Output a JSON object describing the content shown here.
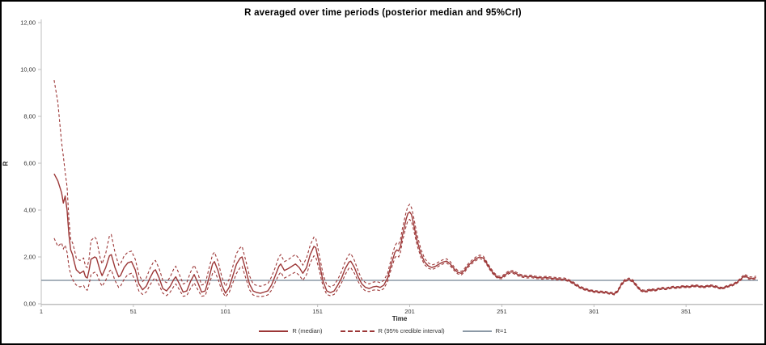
{
  "chart_data": {
    "type": "line",
    "title": "R averaged over time periods (posterior median and 95%CrI)",
    "xlabel": "Time",
    "ylabel": "R",
    "xlim": [
      1,
      390
    ],
    "ylim": [
      0,
      12
    ],
    "grid": false,
    "legend_position": "bottom-center",
    "x_ticks": [
      {
        "v": 1,
        "label": "1"
      },
      {
        "v": 51,
        "label": "51"
      },
      {
        "v": 101,
        "label": "101"
      },
      {
        "v": 151,
        "label": "151"
      },
      {
        "v": 201,
        "label": "201"
      },
      {
        "v": 251,
        "label": "251"
      },
      {
        "v": 301,
        "label": "301"
      },
      {
        "v": 351,
        "label": "351"
      }
    ],
    "y_ticks": [
      {
        "v": 0,
        "label": "0,00"
      },
      {
        "v": 2,
        "label": "2,00"
      },
      {
        "v": 4,
        "label": "4,00"
      },
      {
        "v": 6,
        "label": "6,00"
      },
      {
        "v": 8,
        "label": "8,00"
      },
      {
        "v": 10,
        "label": "10,00"
      },
      {
        "v": 12,
        "label": "12,00"
      }
    ],
    "series": [
      {
        "name": "R (median)",
        "style": "solid",
        "color": "#9c3737"
      },
      {
        "name": "R (95% credible interval)",
        "style": "dashed",
        "color": "#9c3737"
      },
      {
        "name": "R=1",
        "style": "ref",
        "color": "#8c99a6",
        "value": 1
      }
    ],
    "points_format": [
      "time",
      "median",
      "lower95",
      "upper95"
    ],
    "points": [
      [
        8,
        5.55,
        2.8,
        9.55
      ],
      [
        10,
        5.25,
        2.45,
        8.6
      ],
      [
        12,
        4.75,
        2.6,
        6.9
      ],
      [
        13,
        4.3,
        2.35,
        6.3
      ],
      [
        14,
        4.6,
        2.5,
        5.6
      ],
      [
        15,
        4.0,
        2.2,
        5.0
      ],
      [
        16,
        2.95,
        1.6,
        3.6
      ],
      [
        17,
        2.3,
        1.25,
        2.75
      ],
      [
        18,
        2.1,
        1.05,
        2.6
      ],
      [
        19,
        1.75,
        0.9,
        2.3
      ],
      [
        20,
        1.45,
        0.8,
        1.95
      ],
      [
        22,
        1.3,
        0.72,
        1.85
      ],
      [
        24,
        1.4,
        0.78,
        1.95
      ],
      [
        25,
        1.15,
        0.62,
        1.6
      ],
      [
        26,
        1.1,
        0.58,
        1.55
      ],
      [
        27,
        1.45,
        0.85,
        1.95
      ],
      [
        28,
        1.9,
        1.25,
        2.7
      ],
      [
        30,
        2.0,
        1.35,
        2.85
      ],
      [
        31,
        1.95,
        1.3,
        2.75
      ],
      [
        33,
        1.4,
        0.9,
        1.95
      ],
      [
        34,
        1.2,
        0.75,
        1.7
      ],
      [
        36,
        1.55,
        1.0,
        2.15
      ],
      [
        38,
        2.05,
        1.4,
        2.9
      ],
      [
        39,
        2.1,
        1.45,
        2.95
      ],
      [
        41,
        1.55,
        1.0,
        2.2
      ],
      [
        43,
        1.15,
        0.7,
        1.65
      ],
      [
        44,
        1.2,
        0.75,
        1.7
      ],
      [
        46,
        1.55,
        1.05,
        2.05
      ],
      [
        48,
        1.75,
        1.25,
        2.2
      ],
      [
        50,
        1.8,
        1.3,
        2.25
      ],
      [
        52,
        1.45,
        1.0,
        1.9
      ],
      [
        54,
        0.85,
        0.55,
        1.25
      ],
      [
        56,
        0.6,
        0.4,
        0.95
      ],
      [
        58,
        0.75,
        0.5,
        1.1
      ],
      [
        60,
        1.1,
        0.8,
        1.5
      ],
      [
        62,
        1.4,
        1.05,
        1.8
      ],
      [
        63,
        1.45,
        1.1,
        1.85
      ],
      [
        65,
        1.1,
        0.8,
        1.5
      ],
      [
        67,
        0.65,
        0.45,
        1.0
      ],
      [
        69,
        0.55,
        0.35,
        0.9
      ],
      [
        71,
        0.75,
        0.5,
        1.15
      ],
      [
        73,
        1.05,
        0.75,
        1.5
      ],
      [
        74,
        1.15,
        0.85,
        1.6
      ],
      [
        76,
        0.85,
        0.6,
        1.25
      ],
      [
        78,
        0.5,
        0.32,
        0.85
      ],
      [
        80,
        0.55,
        0.35,
        0.9
      ],
      [
        82,
        0.95,
        0.65,
        1.35
      ],
      [
        84,
        1.25,
        0.9,
        1.65
      ],
      [
        86,
        0.9,
        0.6,
        1.3
      ],
      [
        88,
        0.5,
        0.32,
        0.8
      ],
      [
        90,
        0.55,
        0.35,
        0.85
      ],
      [
        92,
        1.1,
        0.8,
        1.5
      ],
      [
        94,
        1.7,
        1.3,
        2.1
      ],
      [
        95,
        1.8,
        1.4,
        2.2
      ],
      [
        97,
        1.4,
        1.05,
        1.8
      ],
      [
        99,
        0.8,
        0.55,
        1.15
      ],
      [
        101,
        0.45,
        0.3,
        0.75
      ],
      [
        103,
        0.7,
        0.48,
        1.05
      ],
      [
        105,
        1.2,
        0.9,
        1.6
      ],
      [
        107,
        1.7,
        1.3,
        2.15
      ],
      [
        109,
        1.95,
        1.55,
        2.4
      ],
      [
        110,
        2.0,
        1.6,
        2.45
      ],
      [
        112,
        1.45,
        1.1,
        1.85
      ],
      [
        114,
        0.85,
        0.6,
        1.2
      ],
      [
        116,
        0.55,
        0.38,
        0.85
      ],
      [
        118,
        0.48,
        0.32,
        0.78
      ],
      [
        120,
        0.45,
        0.3,
        0.75
      ],
      [
        122,
        0.5,
        0.33,
        0.8
      ],
      [
        124,
        0.55,
        0.38,
        0.85
      ],
      [
        126,
        0.8,
        0.58,
        1.15
      ],
      [
        128,
        1.2,
        0.92,
        1.55
      ],
      [
        130,
        1.6,
        1.25,
        2.0
      ],
      [
        131,
        1.7,
        1.35,
        2.1
      ],
      [
        133,
        1.42,
        1.1,
        1.8
      ],
      [
        135,
        1.5,
        1.18,
        1.88
      ],
      [
        137,
        1.6,
        1.28,
        2.0
      ],
      [
        139,
        1.7,
        1.35,
        2.1
      ],
      [
        141,
        1.55,
        1.22,
        1.92
      ],
      [
        143,
        1.3,
        1.0,
        1.65
      ],
      [
        145,
        1.55,
        1.25,
        1.95
      ],
      [
        147,
        2.1,
        1.75,
        2.5
      ],
      [
        149,
        2.45,
        2.05,
        2.85
      ],
      [
        150,
        2.4,
        2.0,
        2.8
      ],
      [
        152,
        1.7,
        1.4,
        2.05
      ],
      [
        154,
        0.95,
        0.72,
        1.25
      ],
      [
        156,
        0.55,
        0.4,
        0.8
      ],
      [
        158,
        0.48,
        0.34,
        0.72
      ],
      [
        160,
        0.55,
        0.4,
        0.8
      ],
      [
        162,
        0.8,
        0.62,
        1.05
      ],
      [
        164,
        1.1,
        0.9,
        1.38
      ],
      [
        166,
        1.5,
        1.25,
        1.8
      ],
      [
        168,
        1.78,
        1.52,
        2.1
      ],
      [
        169,
        1.82,
        1.55,
        2.15
      ],
      [
        171,
        1.55,
        1.3,
        1.85
      ],
      [
        173,
        1.15,
        0.95,
        1.4
      ],
      [
        175,
        0.85,
        0.68,
        1.05
      ],
      [
        177,
        0.7,
        0.55,
        0.9
      ],
      [
        179,
        0.65,
        0.52,
        0.85
      ],
      [
        181,
        0.72,
        0.58,
        0.92
      ],
      [
        183,
        0.75,
        0.6,
        0.95
      ],
      [
        185,
        0.7,
        0.56,
        0.9
      ],
      [
        187,
        0.8,
        0.65,
        1.0
      ],
      [
        189,
        1.1,
        0.95,
        1.3
      ],
      [
        191,
        1.7,
        1.5,
        1.95
      ],
      [
        193,
        2.2,
        1.98,
        2.48
      ],
      [
        194,
        2.3,
        2.05,
        2.6
      ],
      [
        195,
        2.25,
        2.0,
        2.55
      ],
      [
        196,
        2.45,
        2.2,
        2.75
      ],
      [
        197,
        2.9,
        2.65,
        3.2
      ],
      [
        199,
        3.6,
        3.3,
        3.9
      ],
      [
        200,
        3.85,
        3.55,
        4.15
      ],
      [
        201,
        3.92,
        3.6,
        4.25
      ],
      [
        202,
        3.8,
        3.5,
        4.1
      ],
      [
        203,
        3.45,
        3.2,
        3.75
      ],
      [
        205,
        2.7,
        2.5,
        2.95
      ],
      [
        207,
        2.15,
        2.0,
        2.35
      ],
      [
        209,
        1.8,
        1.68,
        1.95
      ],
      [
        211,
        1.62,
        1.52,
        1.75
      ],
      [
        213,
        1.55,
        1.46,
        1.66
      ],
      [
        215,
        1.6,
        1.52,
        1.7
      ],
      [
        217,
        1.7,
        1.62,
        1.8
      ],
      [
        219,
        1.78,
        1.7,
        1.88
      ],
      [
        221,
        1.82,
        1.74,
        1.92
      ],
      [
        223,
        1.7,
        1.62,
        1.8
      ],
      [
        225,
        1.5,
        1.43,
        1.58
      ],
      [
        227,
        1.35,
        1.28,
        1.43
      ],
      [
        229,
        1.3,
        1.23,
        1.38
      ],
      [
        231,
        1.45,
        1.38,
        1.53
      ],
      [
        233,
        1.65,
        1.58,
        1.73
      ],
      [
        235,
        1.8,
        1.73,
        1.88
      ],
      [
        237,
        1.92,
        1.85,
        2.0
      ],
      [
        239,
        2.0,
        1.93,
        2.08
      ],
      [
        241,
        1.95,
        1.88,
        2.03
      ],
      [
        243,
        1.7,
        1.64,
        1.77
      ],
      [
        245,
        1.45,
        1.39,
        1.52
      ],
      [
        247,
        1.25,
        1.2,
        1.31
      ],
      [
        249,
        1.12,
        1.07,
        1.18
      ],
      [
        251,
        1.12,
        1.07,
        1.18
      ],
      [
        253,
        1.25,
        1.19,
        1.31
      ],
      [
        255,
        1.35,
        1.29,
        1.41
      ],
      [
        257,
        1.36,
        1.3,
        1.42
      ],
      [
        259,
        1.28,
        1.22,
        1.34
      ],
      [
        261,
        1.2,
        1.15,
        1.26
      ],
      [
        263,
        1.17,
        1.12,
        1.22
      ],
      [
        265,
        1.15,
        1.1,
        1.2
      ],
      [
        267,
        1.17,
        1.12,
        1.22
      ],
      [
        269,
        1.13,
        1.08,
        1.18
      ],
      [
        271,
        1.12,
        1.07,
        1.17
      ],
      [
        273,
        1.1,
        1.05,
        1.15
      ],
      [
        275,
        1.12,
        1.07,
        1.17
      ],
      [
        277,
        1.1,
        1.05,
        1.15
      ],
      [
        279,
        1.08,
        1.03,
        1.13
      ],
      [
        281,
        1.07,
        1.02,
        1.12
      ],
      [
        283,
        1.05,
        1.0,
        1.1
      ],
      [
        285,
        1.05,
        1.0,
        1.1
      ],
      [
        287,
        1.0,
        0.96,
        1.05
      ],
      [
        289,
        0.92,
        0.88,
        0.97
      ],
      [
        291,
        0.82,
        0.78,
        0.87
      ],
      [
        293,
        0.72,
        0.68,
        0.77
      ],
      [
        295,
        0.65,
        0.61,
        0.7
      ],
      [
        297,
        0.6,
        0.56,
        0.64
      ],
      [
        299,
        0.56,
        0.52,
        0.6
      ],
      [
        301,
        0.53,
        0.49,
        0.57
      ],
      [
        303,
        0.51,
        0.47,
        0.55
      ],
      [
        305,
        0.5,
        0.46,
        0.54
      ],
      [
        307,
        0.49,
        0.45,
        0.53
      ],
      [
        309,
        0.46,
        0.42,
        0.5
      ],
      [
        311,
        0.44,
        0.4,
        0.48
      ],
      [
        312,
        0.42,
        0.38,
        0.46
      ],
      [
        314,
        0.55,
        0.51,
        0.6
      ],
      [
        316,
        0.85,
        0.8,
        0.9
      ],
      [
        318,
        1.0,
        0.95,
        1.05
      ],
      [
        320,
        1.05,
        1.0,
        1.1
      ],
      [
        322,
        0.98,
        0.93,
        1.03
      ],
      [
        324,
        0.78,
        0.74,
        0.83
      ],
      [
        326,
        0.6,
        0.56,
        0.65
      ],
      [
        328,
        0.53,
        0.49,
        0.58
      ],
      [
        330,
        0.55,
        0.51,
        0.6
      ],
      [
        332,
        0.6,
        0.56,
        0.64
      ],
      [
        334,
        0.58,
        0.54,
        0.62
      ],
      [
        336,
        0.63,
        0.59,
        0.67
      ],
      [
        338,
        0.66,
        0.62,
        0.7
      ],
      [
        340,
        0.64,
        0.6,
        0.68
      ],
      [
        342,
        0.68,
        0.64,
        0.72
      ],
      [
        344,
        0.71,
        0.67,
        0.75
      ],
      [
        346,
        0.69,
        0.65,
        0.73
      ],
      [
        348,
        0.72,
        0.68,
        0.76
      ],
      [
        350,
        0.74,
        0.7,
        0.78
      ],
      [
        352,
        0.72,
        0.68,
        0.76
      ],
      [
        354,
        0.75,
        0.71,
        0.79
      ],
      [
        356,
        0.77,
        0.73,
        0.81
      ],
      [
        358,
        0.75,
        0.71,
        0.79
      ],
      [
        360,
        0.72,
        0.68,
        0.76
      ],
      [
        362,
        0.74,
        0.7,
        0.78
      ],
      [
        364,
        0.77,
        0.73,
        0.81
      ],
      [
        366,
        0.75,
        0.71,
        0.79
      ],
      [
        368,
        0.71,
        0.67,
        0.75
      ],
      [
        370,
        0.66,
        0.62,
        0.7
      ],
      [
        372,
        0.7,
        0.66,
        0.74
      ],
      [
        374,
        0.76,
        0.72,
        0.8
      ],
      [
        376,
        0.8,
        0.76,
        0.84
      ],
      [
        378,
        0.88,
        0.84,
        0.92
      ],
      [
        380,
        1.0,
        0.96,
        1.05
      ],
      [
        382,
        1.15,
        1.1,
        1.21
      ],
      [
        383,
        1.2,
        1.15,
        1.26
      ],
      [
        385,
        1.1,
        1.05,
        1.16
      ],
      [
        387,
        1.08,
        1.03,
        1.14
      ],
      [
        389,
        1.12,
        1.07,
        1.18
      ]
    ]
  },
  "colors": {
    "series_red": "#9c3737",
    "reference_line": "#8c99a6",
    "axis_line": "#bfbfbf",
    "tick_text": "#333333"
  }
}
